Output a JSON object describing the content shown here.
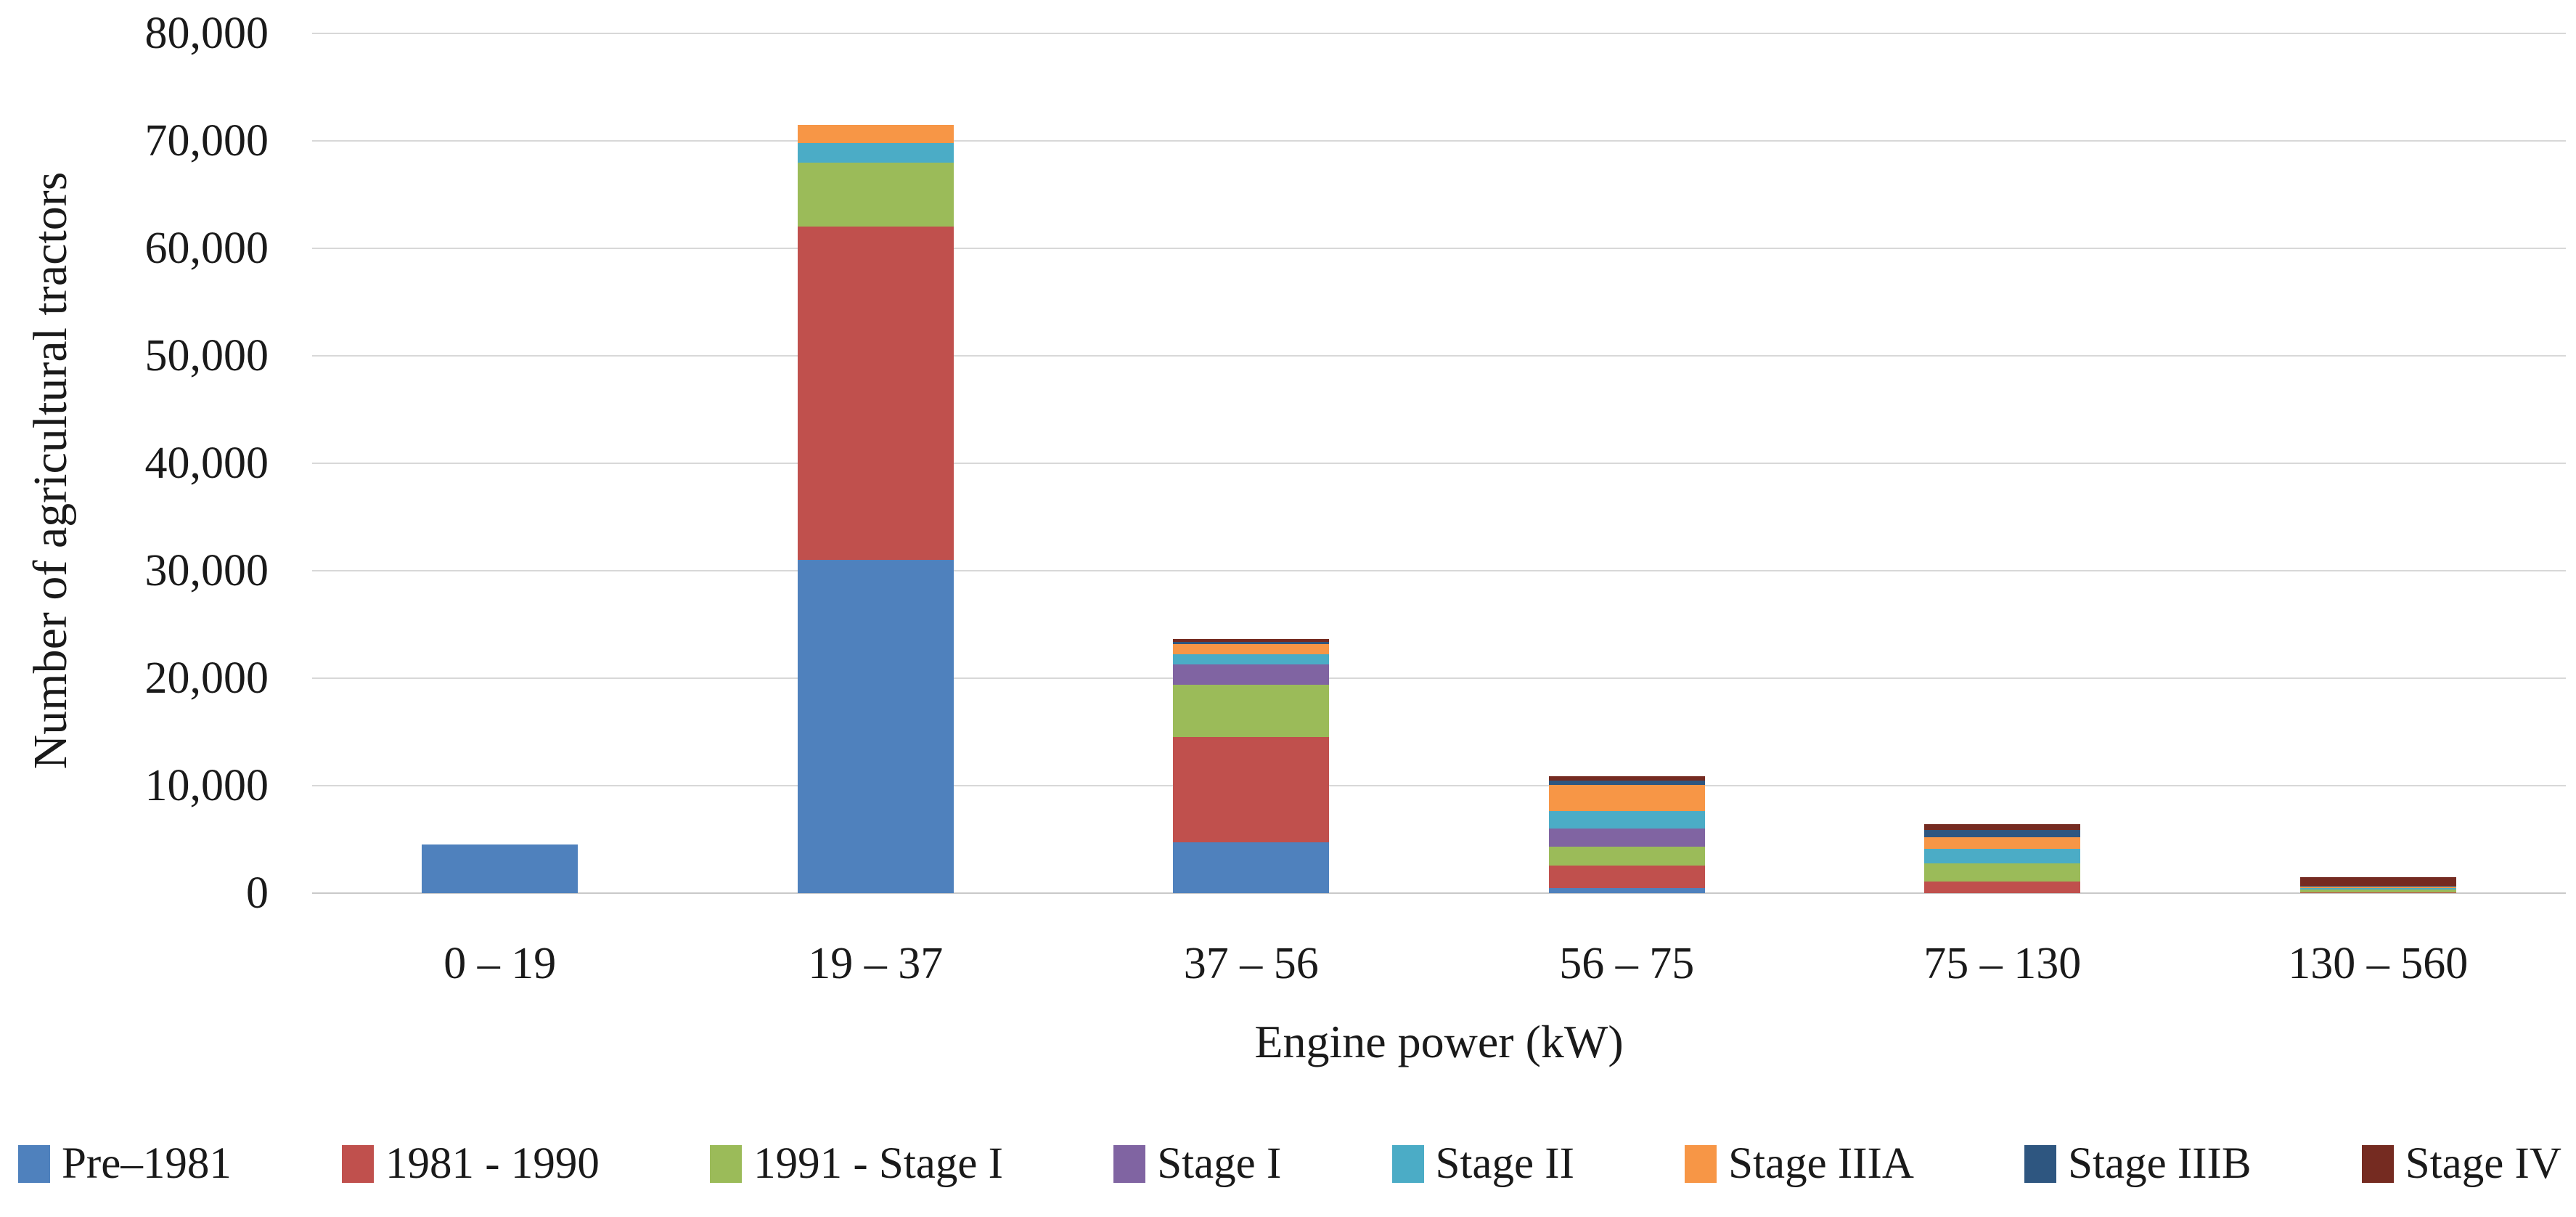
{
  "figure": {
    "background_color": "#ffffff",
    "text_color": "#1a1a1a",
    "gridline_color": "#d8d8d8",
    "axis_line_color": "#c9c9c9"
  },
  "y_axis": {
    "title": "Number of agricultural tractors",
    "min": 0,
    "max": 80000,
    "tick_step": 10000,
    "tick_labels": [
      "0",
      "10,000",
      "20,000",
      "30,000",
      "40,000",
      "50,000",
      "60,000",
      "70,000",
      "80,000"
    ]
  },
  "x_axis": {
    "title": "Engine power (kW)"
  },
  "chart_data": {
    "type": "bar",
    "stacked": true,
    "title": "",
    "xlabel": "Engine power (kW)",
    "ylabel": "Number of agricultural tractors",
    "ylim": [
      0,
      80000
    ],
    "grid": "horizontal",
    "legend_position": "bottom",
    "categories": [
      "0 – 19",
      "19 – 37",
      "37 – 56",
      "56 – 75",
      "75 – 130",
      "130 – 560"
    ],
    "series": [
      {
        "name": "Pre–1981",
        "color": "#4F81BD",
        "values": [
          4500,
          31000,
          4700,
          500,
          0,
          0
        ]
      },
      {
        "name": "1981 - 1990",
        "color": "#C0504D",
        "values": [
          0,
          31000,
          9800,
          2100,
          1100,
          100
        ]
      },
      {
        "name": "1991 - Stage I",
        "color": "#9BBB59",
        "values": [
          0,
          6000,
          4900,
          1700,
          1700,
          250
        ]
      },
      {
        "name": "Stage I",
        "color": "#8064A2",
        "values": [
          0,
          0,
          1900,
          1700,
          0,
          0
        ]
      },
      {
        "name": "Stage II",
        "color": "#4BACC6",
        "values": [
          0,
          1800,
          900,
          1650,
          1300,
          100
        ]
      },
      {
        "name": "Stage IIIA",
        "color": "#F79646",
        "values": [
          0,
          1700,
          1000,
          2450,
          1100,
          150
        ]
      },
      {
        "name": "Stage IIIB",
        "color": "#2E5680",
        "values": [
          0,
          0,
          200,
          400,
          700,
          100
        ]
      },
      {
        "name": "Stage IV",
        "color": "#752B21",
        "values": [
          0,
          0,
          250,
          400,
          500,
          800
        ]
      }
    ]
  }
}
